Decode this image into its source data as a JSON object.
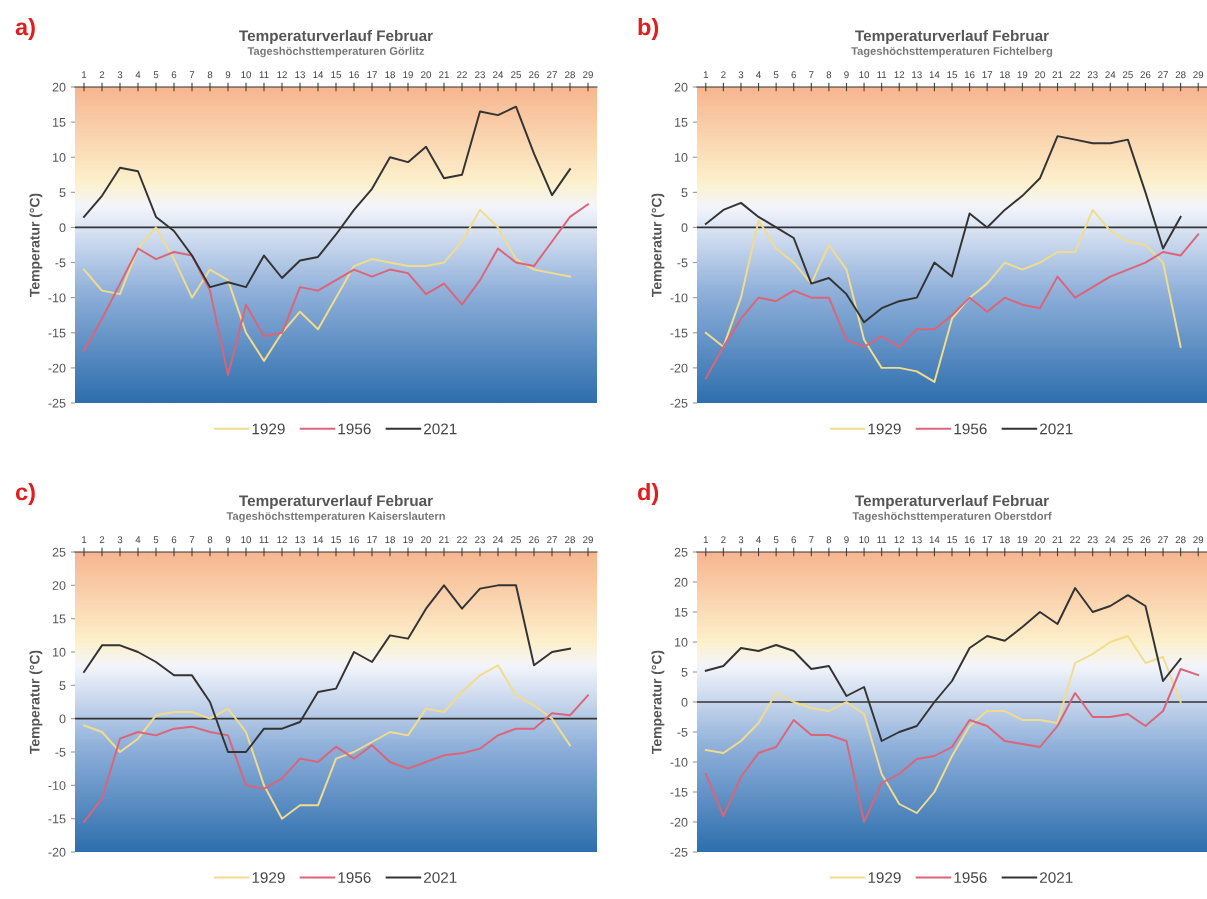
{
  "chart_data": [
    {
      "type": "line",
      "title": "Temperaturverlauf Februar",
      "subtitle": "Tageshöchsttemperaturen Görlitz",
      "ylabel": "Temperatur (°C)",
      "annotations": [
        "a)"
      ],
      "categories": [
        "1",
        "2",
        "3",
        "4",
        "5",
        "6",
        "7",
        "8",
        "9",
        "10",
        "11",
        "12",
        "13",
        "14",
        "15",
        "16",
        "17",
        "18",
        "19",
        "20",
        "21",
        "22",
        "23",
        "24",
        "25",
        "26",
        "27",
        "28",
        "29"
      ],
      "ylim": [
        -25,
        20
      ],
      "yticks": [
        -25,
        -20,
        -15,
        -10,
        -5,
        0,
        5,
        10,
        15,
        20
      ],
      "legend": "bottom",
      "grid": false,
      "ref_lines": [
        {
          "axis": "y",
          "value": 0,
          "color": "#333333"
        }
      ],
      "series": [
        {
          "name": "1929",
          "color": "#f2dc8c",
          "values": [
            -6,
            -9,
            -9.5,
            -3,
            0,
            -4.5,
            -10,
            -6,
            -7.5,
            -15,
            -19,
            -15,
            -12,
            -14.5,
            -10,
            -5.5,
            -4.5,
            -5,
            -5.5,
            -5.5,
            -5,
            -2,
            2.5,
            0,
            -4.5,
            -6,
            -6.5,
            -7,
            null
          ]
        },
        {
          "name": "1956",
          "color": "#dc6478",
          "values": [
            -17.5,
            -13,
            -8,
            -3,
            -4.5,
            -3.5,
            -4,
            -9,
            -21,
            -11,
            -15.5,
            -15,
            -8.5,
            -9,
            -7.5,
            -6,
            -7,
            -6,
            -6.5,
            -9.5,
            -8,
            -11,
            -7.5,
            -3,
            -5,
            -5.5,
            -2,
            1.5,
            3.3
          ]
        },
        {
          "name": "2021",
          "color": "#333333",
          "values": [
            1.5,
            4.5,
            8.5,
            8,
            1.5,
            -0.5,
            -4,
            -8.5,
            -7.8,
            -8.5,
            -4,
            -7.2,
            -4.7,
            -4.2,
            -1,
            2.5,
            5.5,
            10,
            9.3,
            11.5,
            7,
            7.5,
            16.5,
            16,
            17.2,
            10.5,
            4.6,
            8.3,
            null
          ]
        }
      ]
    },
    {
      "type": "line",
      "title": "Temperaturverlauf Februar",
      "subtitle": "Tageshöchsttemperaturen Fichtelberg",
      "ylabel": "Temperatur (°C)",
      "annotations": [
        "b)"
      ],
      "categories": [
        "1",
        "2",
        "3",
        "4",
        "5",
        "6",
        "7",
        "8",
        "9",
        "10",
        "11",
        "12",
        "13",
        "14",
        "15",
        "16",
        "17",
        "18",
        "19",
        "20",
        "21",
        "22",
        "23",
        "24",
        "25",
        "26",
        "27",
        "28",
        "29"
      ],
      "ylim": [
        -25,
        20
      ],
      "yticks": [
        -25,
        -20,
        -15,
        -10,
        -5,
        0,
        5,
        10,
        15,
        20
      ],
      "legend": "bottom",
      "grid": false,
      "ref_lines": [
        {
          "axis": "y",
          "value": 0,
          "color": "#333333"
        }
      ],
      "series": [
        {
          "name": "1929",
          "color": "#f2dc8c",
          "values": [
            -15,
            -17,
            -10,
            1,
            -3,
            -5,
            -8,
            -2.5,
            -6,
            -16,
            -20,
            -20,
            -20.5,
            -22,
            -13,
            -10,
            -8,
            -5,
            -6,
            -5,
            -3.5,
            -3.5,
            2.5,
            -0.5,
            -2,
            -2.5,
            -5,
            -17,
            null
          ]
        },
        {
          "name": "1956",
          "color": "#dc6478",
          "values": [
            -21.5,
            -17,
            -13,
            -10,
            -10.5,
            -9,
            -10,
            -10,
            -16,
            -17,
            -15.5,
            -17,
            -14.5,
            -14.5,
            -12.5,
            -10,
            -12,
            -10,
            -11,
            -11.5,
            -7,
            -10,
            -8.5,
            -7,
            -6,
            -5,
            -3.5,
            -4,
            -1
          ]
        },
        {
          "name": "2021",
          "color": "#333333",
          "values": [
            0.5,
            2.5,
            3.5,
            1.5,
            0,
            -1.5,
            -8,
            -7.2,
            -9.5,
            -13.5,
            -11.5,
            -10.5,
            -10,
            -5,
            -7,
            2,
            0,
            2.5,
            4.5,
            7,
            13,
            12.5,
            12,
            12,
            12.5,
            5,
            -3,
            1.5,
            null
          ]
        }
      ]
    },
    {
      "type": "line",
      "title": "Temperaturverlauf Februar",
      "subtitle": "Tageshöchsttemperaturen Kaiserslautern",
      "ylabel": "Temperatur (°C)",
      "annotations": [
        "c)"
      ],
      "categories": [
        "1",
        "2",
        "3",
        "4",
        "5",
        "6",
        "7",
        "8",
        "9",
        "10",
        "11",
        "12",
        "13",
        "14",
        "15",
        "16",
        "17",
        "18",
        "19",
        "20",
        "21",
        "22",
        "23",
        "24",
        "25",
        "26",
        "27",
        "28",
        "29"
      ],
      "ylim": [
        -20,
        25
      ],
      "yticks": [
        -20,
        -15,
        -10,
        -5,
        0,
        5,
        10,
        15,
        20,
        25
      ],
      "legend": "bottom",
      "grid": false,
      "ref_lines": [
        {
          "axis": "y",
          "value": 0,
          "color": "#333333"
        }
      ],
      "series": [
        {
          "name": "1929",
          "color": "#f2dc8c",
          "values": [
            -1,
            -2,
            -5,
            -3,
            0.5,
            1,
            1,
            0,
            1.5,
            -2,
            -10,
            -15,
            -13,
            -13,
            -6,
            -5,
            -3.5,
            -2,
            -2.5,
            1.5,
            1,
            4,
            6.5,
            8,
            3.5,
            2,
            0,
            -4,
            null
          ]
        },
        {
          "name": "1956",
          "color": "#dc6478",
          "values": [
            -15.5,
            -12,
            -3,
            -2,
            -2.5,
            -1.5,
            -1.2,
            -2,
            -2.5,
            -10,
            -10.5,
            -9,
            -6,
            -6.5,
            -4.2,
            -6,
            -4,
            -6.5,
            -7.5,
            -6.5,
            -5.5,
            -5.2,
            -4.5,
            -2.5,
            -1.5,
            -1.5,
            0.8,
            0.5,
            3.5
          ]
        },
        {
          "name": "2021",
          "color": "#333333",
          "values": [
            7,
            11,
            11,
            10,
            8.5,
            6.5,
            6.5,
            2.5,
            -5,
            -5,
            -1.5,
            -1.5,
            -0.5,
            4,
            4.5,
            10,
            8.5,
            12.5,
            12,
            16.5,
            20,
            16.5,
            19.5,
            20,
            20,
            8,
            10,
            10.5,
            null
          ]
        }
      ]
    },
    {
      "type": "line",
      "title": "Temperaturverlauf Februar",
      "subtitle": "Tageshöchsttemperaturen Oberstdorf",
      "ylabel": "Temperatur (°C)",
      "annotations": [
        "d)"
      ],
      "categories": [
        "1",
        "2",
        "3",
        "4",
        "5",
        "6",
        "7",
        "8",
        "9",
        "10",
        "11",
        "12",
        "13",
        "14",
        "15",
        "16",
        "17",
        "18",
        "19",
        "20",
        "21",
        "22",
        "23",
        "24",
        "25",
        "26",
        "27",
        "28",
        "29"
      ],
      "ylim": [
        -25,
        25
      ],
      "yticks": [
        -25,
        -20,
        -15,
        -10,
        -5,
        0,
        5,
        10,
        15,
        20,
        25
      ],
      "legend": "bottom",
      "grid": false,
      "ref_lines": [
        {
          "axis": "y",
          "value": 0,
          "color": "#333333"
        }
      ],
      "series": [
        {
          "name": "1929",
          "color": "#f2dc8c",
          "values": [
            -8,
            -8.5,
            -6.5,
            -3.5,
            1.5,
            0,
            -1,
            -1.5,
            0,
            -2,
            -12,
            -17,
            -18.5,
            -15,
            -9,
            -4,
            -1.5,
            -1.5,
            -3,
            -3,
            -3.5,
            6.5,
            8,
            10,
            11,
            6.5,
            7.5,
            0,
            null
          ]
        },
        {
          "name": "1956",
          "color": "#dc6478",
          "values": [
            -12,
            -19,
            -12.5,
            -8.5,
            -7.5,
            -3,
            -5.5,
            -5.5,
            -6.5,
            -20,
            -13.5,
            -12,
            -9.5,
            -9,
            -7.5,
            -3,
            -4,
            -6.5,
            -7,
            -7.5,
            -4,
            1.5,
            -2.5,
            -2.5,
            -2,
            -4,
            -1.5,
            5.5,
            4.5
          ]
        },
        {
          "name": "2021",
          "color": "#333333",
          "values": [
            5.2,
            6,
            9,
            8.5,
            9.5,
            8.5,
            5.5,
            6,
            1,
            2.5,
            -6.5,
            -5,
            -4,
            0,
            3.5,
            9,
            11,
            10.2,
            12.5,
            15,
            13,
            19,
            15,
            16,
            17.8,
            16,
            3.5,
            7.2,
            null
          ]
        }
      ]
    }
  ]
}
